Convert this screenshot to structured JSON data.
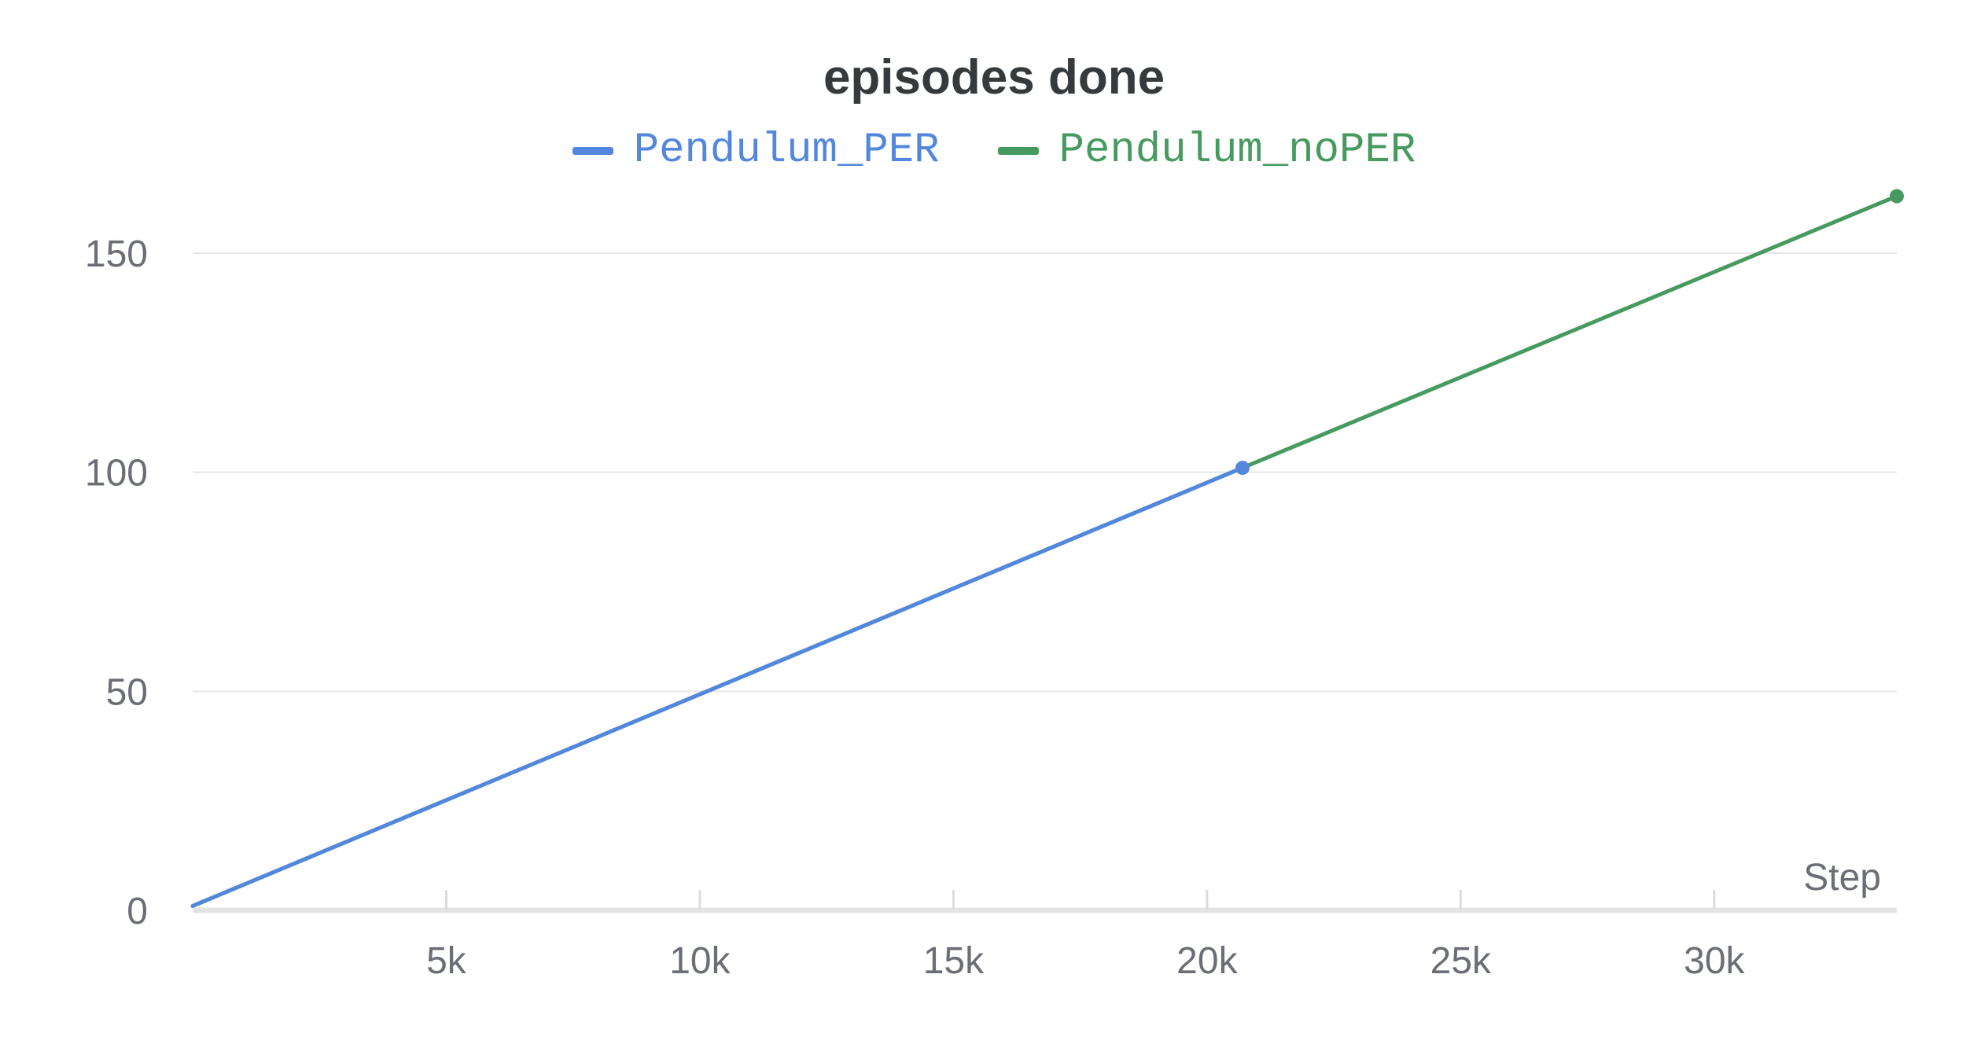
{
  "chart_data": {
    "type": "line",
    "title": "episodes done",
    "xlabel": "Step",
    "ylabel": "",
    "xlim": [
      0,
      33600
    ],
    "ylim": [
      0,
      160
    ],
    "x_ticks": [
      {
        "value": 5000,
        "label": "5k"
      },
      {
        "value": 10000,
        "label": "10k"
      },
      {
        "value": 15000,
        "label": "15k"
      },
      {
        "value": 20000,
        "label": "20k"
      },
      {
        "value": 25000,
        "label": "25k"
      },
      {
        "value": 30000,
        "label": "30k"
      }
    ],
    "y_ticks": [
      {
        "value": 0,
        "label": "0"
      },
      {
        "value": 50,
        "label": "50"
      },
      {
        "value": 100,
        "label": "100"
      },
      {
        "value": 150,
        "label": "150"
      }
    ],
    "grid": true,
    "legend_position": "top-center",
    "series": [
      {
        "name": "Pendulum_PER",
        "color": "#5387dd",
        "points": [
          [
            0,
            1
          ],
          [
            20700,
            101
          ]
        ]
      },
      {
        "name": "Pendulum_noPER",
        "color": "#479a5f",
        "points": [
          [
            0,
            1
          ],
          [
            20700,
            101
          ],
          [
            33600,
            163
          ]
        ]
      }
    ]
  }
}
